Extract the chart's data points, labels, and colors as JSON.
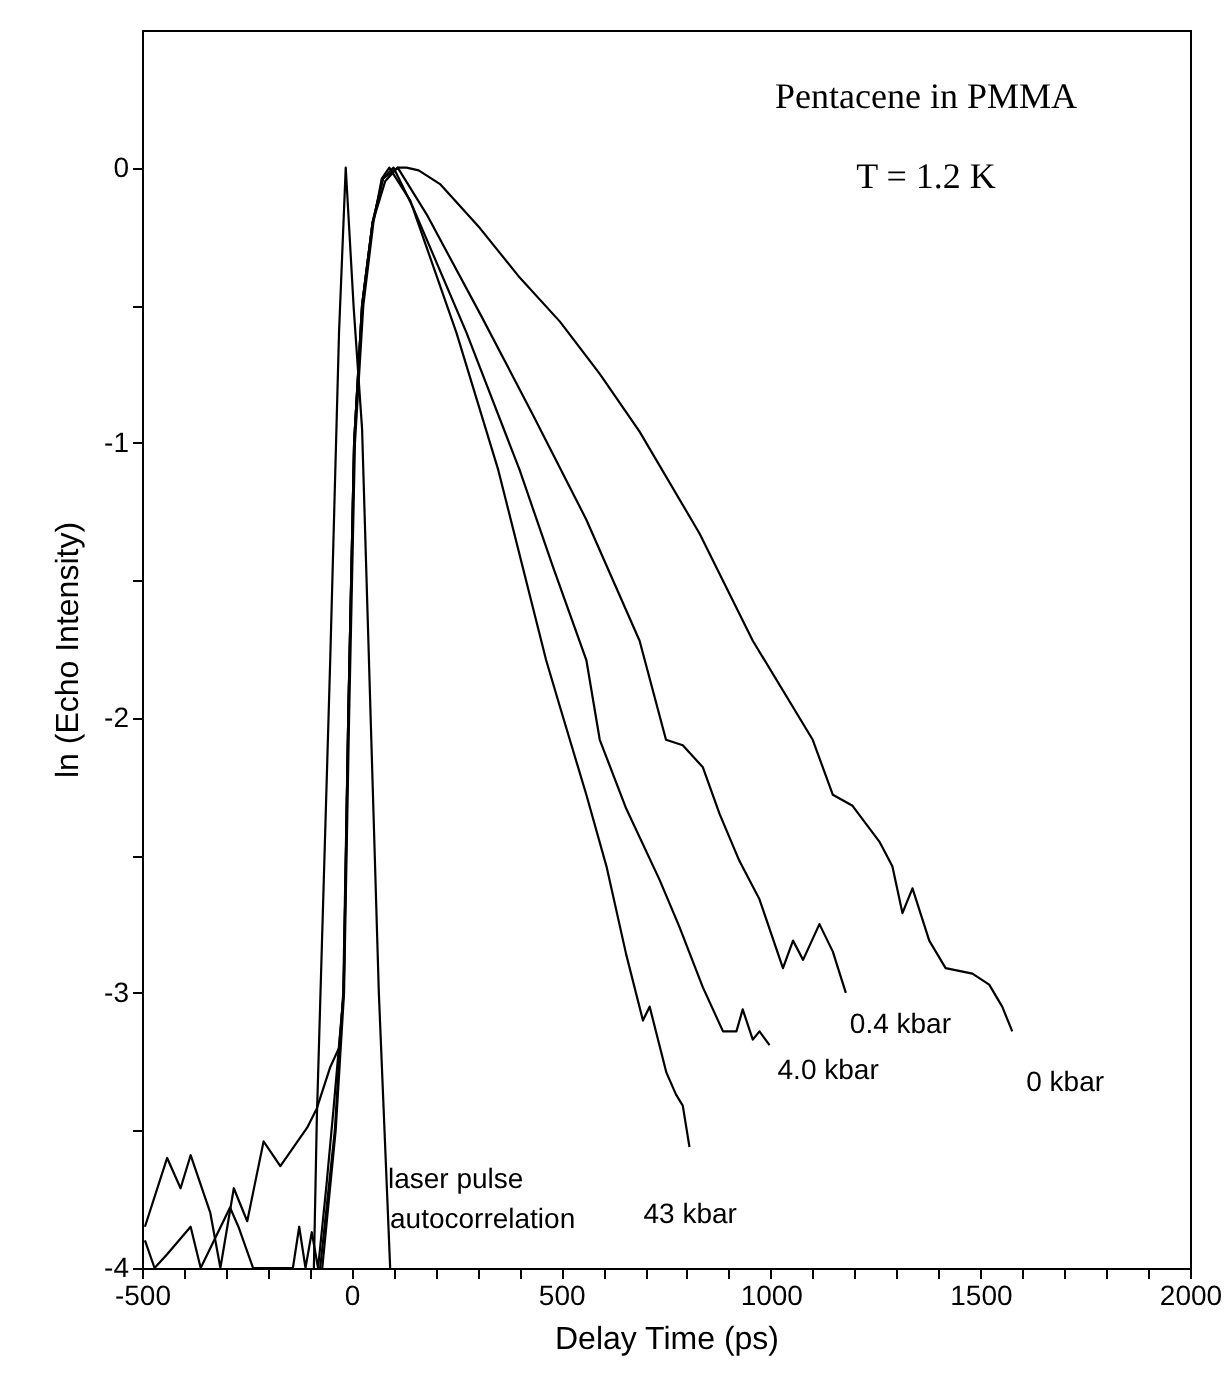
{
  "chart_data": {
    "type": "line",
    "xlabel": "Delay Time (ps)",
    "ylabel": "ln (Echo Intensity)",
    "xlim": [
      -500,
      2000
    ],
    "ylim": [
      -4,
      0.5
    ],
    "xticks": [
      -500,
      {
        "value": -400,
        "label": null
      },
      {
        "value": -300,
        "label": null
      },
      {
        "value": -200,
        "label": null
      },
      {
        "value": -100,
        "label": null
      },
      0,
      {
        "value": 100,
        "label": null
      },
      {
        "value": 200,
        "label": null
      },
      {
        "value": 300,
        "label": null
      },
      {
        "value": 400,
        "label": null
      },
      500,
      {
        "value": 600,
        "label": null
      },
      {
        "value": 700,
        "label": null
      },
      {
        "value": 800,
        "label": null
      },
      {
        "value": 900,
        "label": null
      },
      1000,
      {
        "value": 1100,
        "label": null
      },
      {
        "value": 1200,
        "label": null
      },
      {
        "value": 1300,
        "label": null
      },
      {
        "value": 1400,
        "label": null
      },
      1500,
      {
        "value": 1600,
        "label": null
      },
      {
        "value": 1700,
        "label": null
      },
      {
        "value": 1800,
        "label": null
      },
      {
        "value": 1900,
        "label": null
      },
      2000
    ],
    "yticks": [
      -4,
      {
        "value": -3.5,
        "label": null
      },
      -3,
      {
        "value": -2.5,
        "label": null
      },
      -2,
      {
        "value": -1.5,
        "label": null
      },
      -1,
      {
        "value": -0.5,
        "label": null
      },
      0
    ],
    "series": [
      {
        "color": "#000000",
        "x": [
          -90,
          -83,
          -51,
          -30,
          -14,
          5,
          25,
          40,
          65,
          92
        ],
        "values": [
          -4,
          -3.46,
          -1.79,
          -0.6,
          0,
          -0.51,
          -0.95,
          -1.72,
          -3.0,
          -4
        ]
      },
      {
        "name": "0 kbar",
        "color": "#000000",
        "x": [
          -493,
          -440,
          -408,
          -384,
          -337,
          -313,
          -281,
          -249,
          -210,
          -170,
          -138,
          -106,
          -83,
          -51,
          -30,
          -19,
          -8,
          6,
          25,
          50,
          80,
          110,
          131,
          160,
          211,
          306,
          401,
          497,
          592,
          687,
          830,
          957,
          1100,
          1148,
          1195,
          1259,
          1290,
          1314,
          1338,
          1378,
          1417,
          1481,
          1521,
          1552,
          1576
        ],
        "values": [
          -3.85,
          -3.6,
          -3.71,
          -3.59,
          -3.8,
          -4,
          -3.71,
          -3.83,
          -3.54,
          -3.63,
          -3.56,
          -3.49,
          -3.42,
          -3.27,
          -3.2,
          -3.0,
          -2.0,
          -1.0,
          -0.5,
          -0.2,
          -0.05,
          0,
          0,
          -0.01,
          -0.06,
          -0.22,
          -0.4,
          -0.56,
          -0.75,
          -0.96,
          -1.33,
          -1.72,
          -2.08,
          -2.28,
          -2.32,
          -2.45,
          -2.54,
          -2.71,
          -2.62,
          -2.81,
          -2.91,
          -2.93,
          -2.97,
          -3.05,
          -3.14
        ]
      },
      {
        "name": "0.4 kbar",
        "color": "#000000",
        "x": [
          -493,
          -470,
          -440,
          -384,
          -360,
          -290,
          -270,
          -235,
          -210,
          -140,
          -125,
          -110,
          -95,
          -80,
          -60,
          -43,
          -19,
          -8,
          6,
          25,
          50,
          75,
          110,
          179,
          306,
          433,
          560,
          687,
          750,
          790,
          838,
          878,
          925,
          973,
          1029,
          1053,
          1077,
          1116,
          1148,
          1179
        ],
        "values": [
          -3.9,
          -4,
          -3.95,
          -3.85,
          -4,
          -3.78,
          -3.85,
          -4,
          -4,
          -4,
          -3.85,
          -4,
          -3.87,
          -4,
          -3.7,
          -3.42,
          -3.0,
          -2.0,
          -1.0,
          -0.5,
          -0.2,
          -0.04,
          0,
          -0.17,
          -0.53,
          -0.9,
          -1.28,
          -1.72,
          -2.08,
          -2.1,
          -2.18,
          -2.35,
          -2.52,
          -2.66,
          -2.91,
          -2.81,
          -2.88,
          -2.75,
          -2.85,
          -3.0
        ]
      },
      {
        "name": "4.0 kbar",
        "color": "#000000",
        "x": [
          -75,
          -40,
          -20,
          -8,
          6,
          25,
          50,
          75,
          100,
          148,
          274,
          401,
          480,
          560,
          592,
          655,
          735,
          782,
          838,
          886,
          918,
          933,
          957,
          973,
          997
        ],
        "values": [
          -4,
          -3.5,
          -3.0,
          -2.0,
          -1.0,
          -0.5,
          -0.2,
          -0.04,
          0,
          -0.15,
          -0.6,
          -1.1,
          -1.45,
          -1.79,
          -2.08,
          -2.33,
          -2.59,
          -2.76,
          -2.98,
          -3.14,
          -3.14,
          -3.06,
          -3.17,
          -3.14,
          -3.19
        ]
      },
      {
        "name": "43 kbar",
        "color": "#000000",
        "x": [
          -70,
          -38,
          -18,
          -6,
          8,
          28,
          52,
          72,
          90,
          140,
          250,
          350,
          464,
          497,
          560,
          608,
          655,
          695,
          711,
          751,
          774,
          790,
          806
        ],
        "values": [
          -4,
          -3.5,
          -3.0,
          -2.0,
          -1.0,
          -0.5,
          -0.2,
          -0.04,
          0,
          -0.12,
          -0.6,
          -1.1,
          -1.79,
          -1.96,
          -2.28,
          -2.54,
          -2.86,
          -3.1,
          -3.05,
          -3.29,
          -3.37,
          -3.41,
          -3.56
        ]
      }
    ],
    "annotations": [
      "Pentacene in PMMA",
      "T = 1.2 K",
      "laser pulse",
      "autocorrelation"
    ]
  }
}
